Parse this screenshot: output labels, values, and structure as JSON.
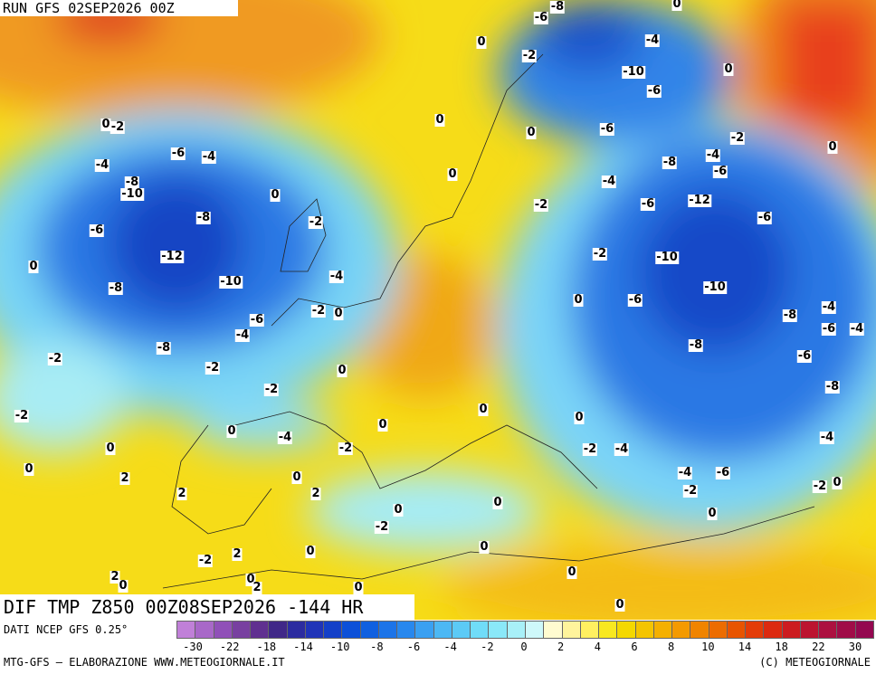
{
  "header": {
    "run": "RUN GFS 02SEP2026 00Z"
  },
  "map": {
    "title": "DIF TMP Z850 00Z08SEP2026 -144 HR",
    "contour_labels": [
      0,
      -2,
      -4,
      -6,
      -4,
      -8,
      -10,
      -8,
      -6,
      -12,
      -10,
      -8,
      0,
      -2,
      -4,
      -2,
      0,
      -6,
      -4,
      -8,
      -2,
      -2,
      0,
      -2,
      0,
      -2,
      0,
      0,
      2,
      2,
      0,
      -4,
      -2,
      0,
      0,
      2,
      0,
      -2,
      0,
      2,
      -2,
      2,
      0,
      0,
      2,
      0,
      0,
      0,
      0,
      0,
      0,
      -2,
      -4,
      -6,
      -2,
      0,
      -4,
      -2,
      -4,
      0,
      0,
      -8,
      -6,
      -8,
      -8,
      -6,
      -4,
      -4,
      -10,
      -6,
      0,
      -10,
      -2,
      -6,
      -12,
      -6,
      -4,
      -2,
      -8,
      -6,
      -4,
      -2,
      0,
      -6,
      0,
      0,
      0,
      -6,
      -10,
      -4,
      0,
      -6,
      -8,
      0,
      -2,
      0
    ]
  },
  "legend": {
    "source": "DATI NCEP GFS 0.25°",
    "colors": [
      "#c080d8",
      "#a868c8",
      "#9050b8",
      "#7840a0",
      "#603090",
      "#402888",
      "#2c2ca0",
      "#2034b8",
      "#1440c8",
      "#0c50d8",
      "#1060e0",
      "#1c74e8",
      "#2888ee",
      "#3aa0f2",
      "#4cb8f4",
      "#5ccaf6",
      "#70dcf8",
      "#8ae8f8",
      "#a8f0f8",
      "#cef8fa",
      "#fffbd0",
      "#fff49c",
      "#fff060",
      "#f8e820",
      "#f4d800",
      "#f4c400",
      "#f4b000",
      "#f49a00",
      "#f08400",
      "#ec6c00",
      "#e85400",
      "#e43c08",
      "#dc2a10",
      "#cc1c20",
      "#bc1430",
      "#ac1040",
      "#a00c48",
      "#940850"
    ],
    "ticks": [
      -30,
      -22,
      -18,
      -14,
      -10,
      -8,
      -6,
      -4,
      -2,
      0,
      2,
      4,
      6,
      8,
      10,
      14,
      18,
      22,
      30
    ]
  },
  "footer": {
    "left": "MTG-GFS — ELABORAZIONE WWW.METEOGIORNALE.IT",
    "right": "(C) METEOGIORNALE"
  }
}
